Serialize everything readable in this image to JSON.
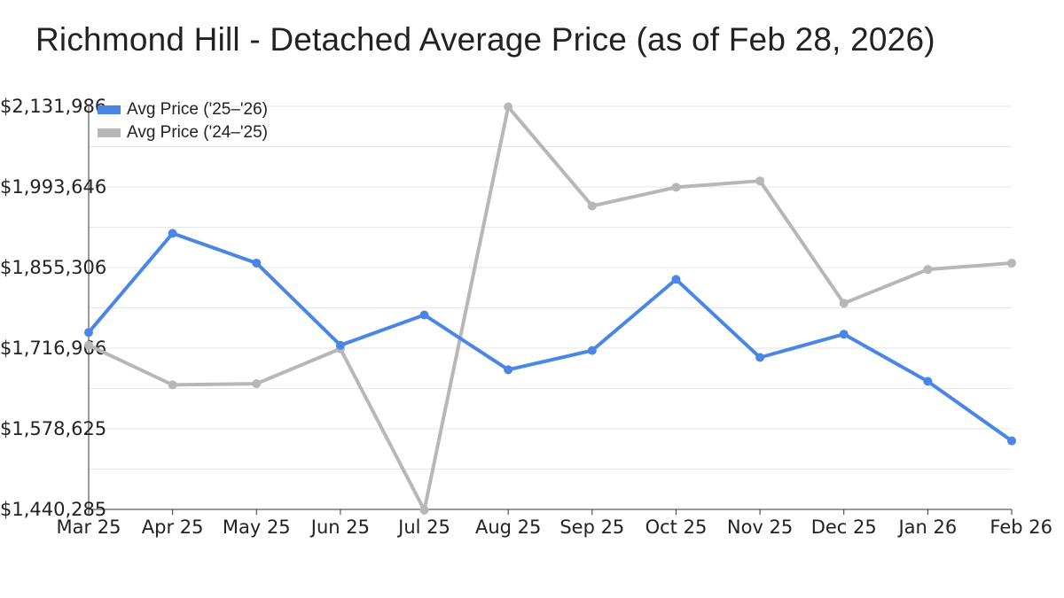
{
  "chart_data": {
    "type": "line",
    "title": "Richmond Hill - Detached Average Price (as of Feb 28, 2026)",
    "categories": [
      "Mar 25",
      "Apr 25",
      "May 25",
      "Jun 25",
      "Jul 25",
      "Aug 25",
      "Sep 25",
      "Oct 25",
      "Nov 25",
      "Dec 25",
      "Jan 26",
      "Feb 26"
    ],
    "y_ticks": [
      "$1,440,285",
      "$1,578,625",
      "$1,716,966",
      "$1,855,306",
      "$1,993,646",
      "$2,131,986"
    ],
    "ylim": [
      1440285,
      2131986
    ],
    "grid": true,
    "legend_position": "top-left",
    "series": [
      {
        "name": "Avg Price ('25–'26)",
        "color": "#4a86e8",
        "values": [
          1744000,
          1914000,
          1863000,
          1722000,
          1774000,
          1680000,
          1713000,
          1835000,
          1701000,
          1741000,
          1660000,
          1558000
        ]
      },
      {
        "name": "Avg Price ('24–'25)",
        "color": "#b7b7b7",
        "values": [
          1722000,
          1654000,
          1656000,
          1716000,
          1439000,
          2131000,
          1961000,
          1993000,
          2004000,
          1794000,
          1852000,
          1863000
        ]
      }
    ]
  }
}
